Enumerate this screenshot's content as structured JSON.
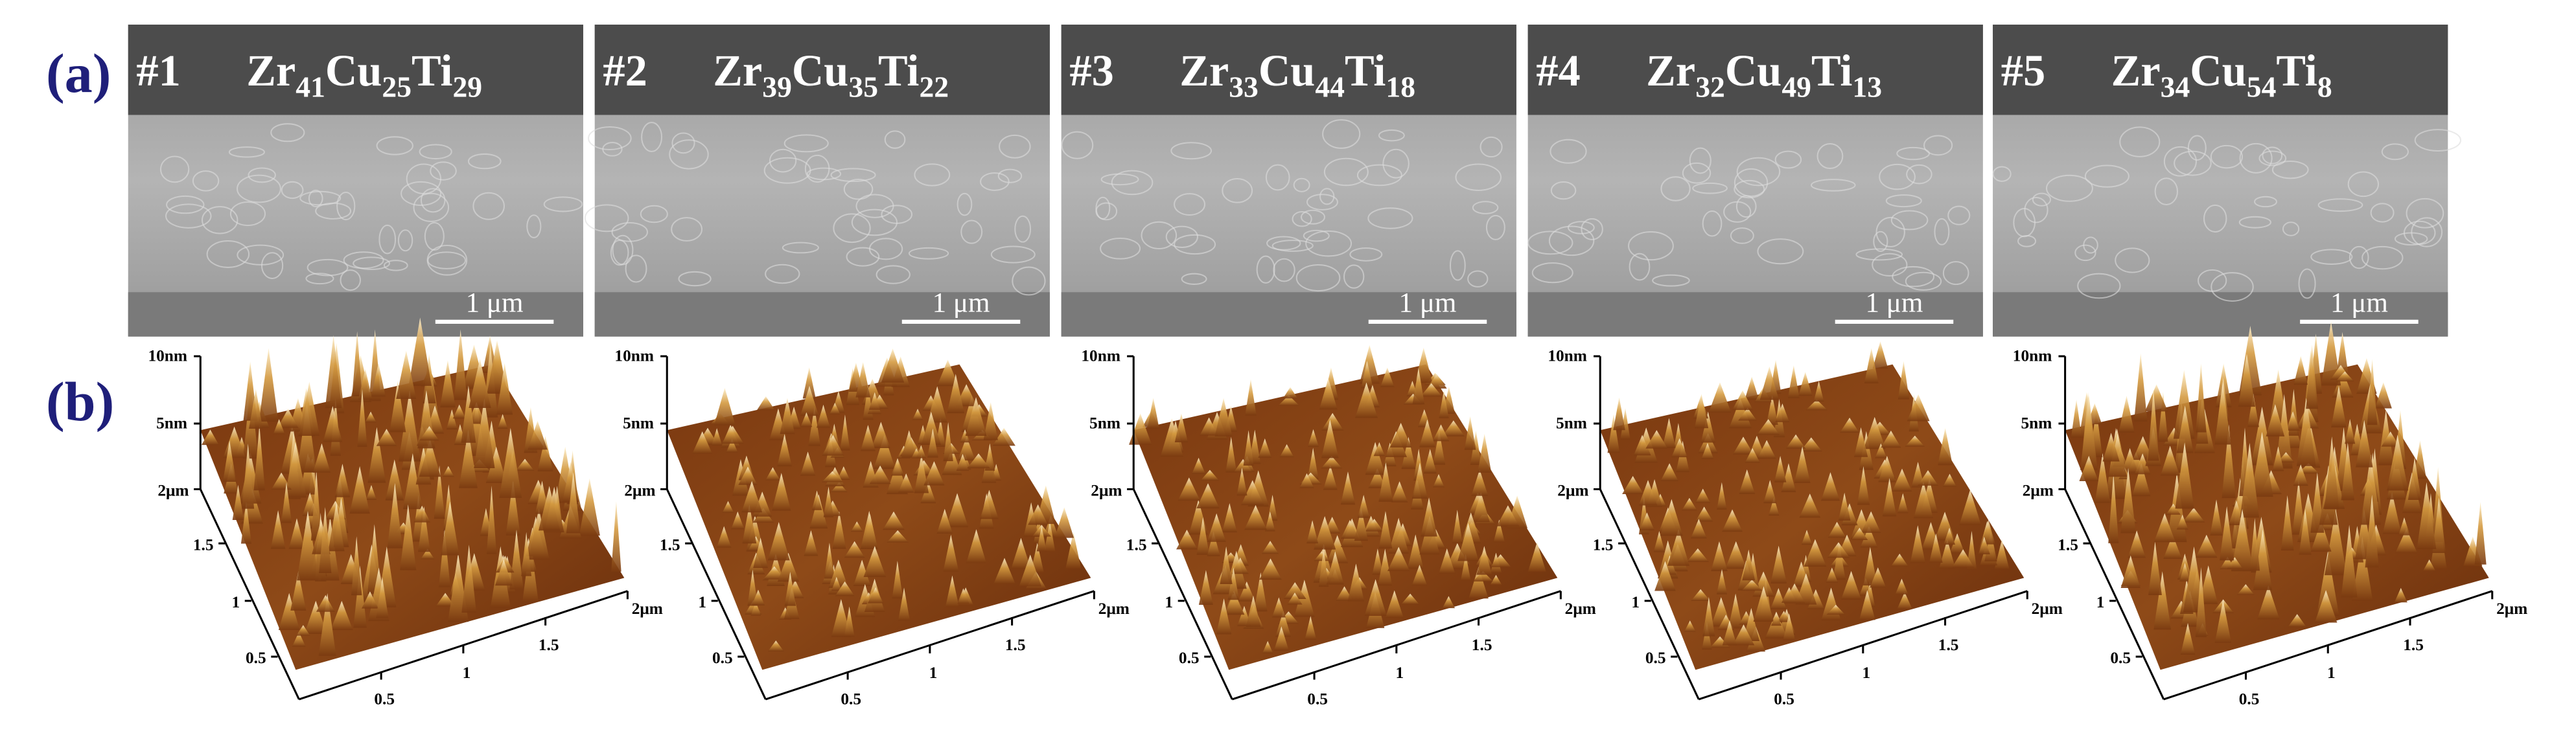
{
  "figure": {
    "panel_labels": [
      "(a)",
      "(b)"
    ],
    "samples": [
      {
        "id": "#1",
        "composition": [
          {
            "element": "Zr",
            "subscript": "41"
          },
          {
            "element": "Cu",
            "subscript": "25"
          },
          {
            "element": "Ti",
            "subscript": "29"
          }
        ],
        "scale_bar": "1 μm"
      },
      {
        "id": "#2",
        "composition": [
          {
            "element": "Zr",
            "subscript": "39"
          },
          {
            "element": "Cu",
            "subscript": "35"
          },
          {
            "element": "Ti",
            "subscript": "22"
          }
        ],
        "scale_bar": "1 μm"
      },
      {
        "id": "#3",
        "composition": [
          {
            "element": "Zr",
            "subscript": "33"
          },
          {
            "element": "Cu",
            "subscript": "44"
          },
          {
            "element": "Ti",
            "subscript": "18"
          }
        ],
        "scale_bar": "1 μm"
      },
      {
        "id": "#4",
        "composition": [
          {
            "element": "Zr",
            "subscript": "32"
          },
          {
            "element": "Cu",
            "subscript": "49"
          },
          {
            "element": "Ti",
            "subscript": "13"
          }
        ],
        "scale_bar": "1 μm"
      },
      {
        "id": "#5",
        "composition": [
          {
            "element": "Zr",
            "subscript": "34"
          },
          {
            "element": "Cu",
            "subscript": "54"
          },
          {
            "element": "Ti",
            "subscript": "8"
          }
        ],
        "scale_bar": "1 μm"
      }
    ],
    "afm_axes": {
      "z_labels": [
        "10nm",
        "5nm"
      ],
      "y_labels": [
        "2μm",
        "1.5",
        "1",
        "0.5"
      ],
      "x_labels": [
        "0.5",
        "1",
        "1.5",
        "2μm"
      ]
    }
  }
}
